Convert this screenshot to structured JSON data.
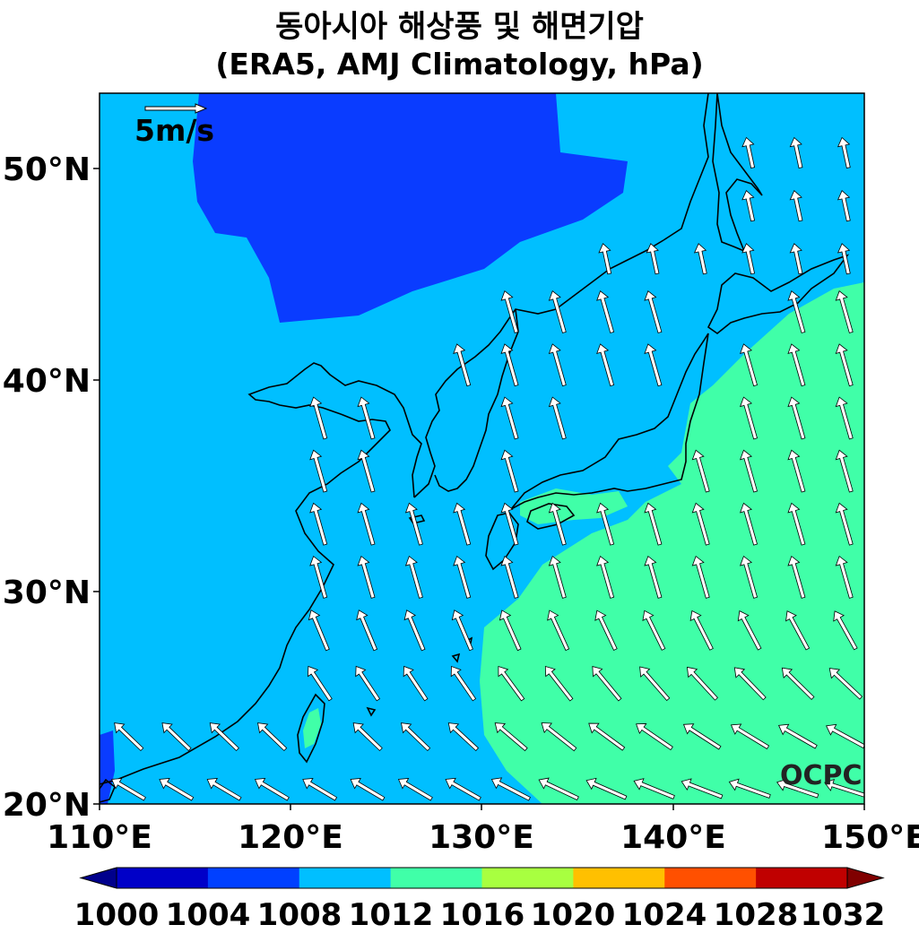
{
  "title": {
    "line1": "동아시아 해상풍 및 해면기압",
    "line2": "(ERA5, AMJ Climatology, hPa)"
  },
  "map": {
    "lon_range": [
      110,
      150
    ],
    "lat_range": [
      20,
      53.5
    ],
    "lon_ticks": [
      "110°E",
      "120°E",
      "130°E",
      "140°E",
      "150°E"
    ],
    "lat_ticks": [
      "20°N",
      "30°N",
      "40°N",
      "50°N"
    ],
    "reference_vector_label": "5m/s",
    "reference_vector_speed_ms": 5,
    "watermark": "OCPC",
    "sea_level_pressure_hPa": {
      "1004_1008_low_over_mongolia_region": "dark blue",
      "1008_1012_background": "light blue",
      "1012_1016_high_over_western_pacific": "green"
    }
  },
  "colorbar": {
    "labels": [
      "1000",
      "1004",
      "1008",
      "1012",
      "1016",
      "1020",
      "1024",
      "1028",
      "1032"
    ],
    "colors": [
      "#0000c8",
      "#0040ff",
      "#00bfff",
      "#40ffa8",
      "#a8ff40",
      "#ffc000",
      "#ff5000",
      "#c00000"
    ],
    "extend_low_color": "#00008c",
    "extend_high_color": "#800000"
  },
  "colors": {
    "level_1004": "#0a3cff",
    "level_1008": "#00bfff",
    "level_1012": "#40ffa8",
    "coastline": "#000000",
    "arrow_fill": "#ffffff",
    "arrow_edge": "#000000"
  }
}
